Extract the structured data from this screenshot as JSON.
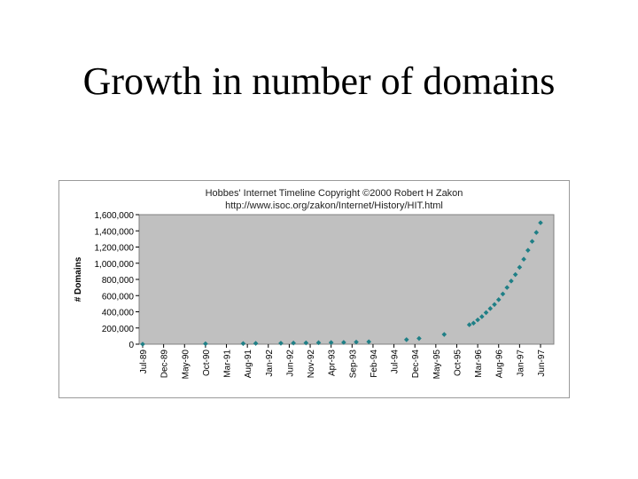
{
  "slide": {
    "title": "Growth in number of domains"
  },
  "chart_data": {
    "type": "scatter",
    "title_lines": [
      "Hobbes' Internet Timeline Copyright ©2000 Robert H Zakon",
      "http://www.isoc.org/zakon/Internet/History/HIT.html"
    ],
    "xlabel": "",
    "ylabel": "# Domains",
    "ylim": [
      0,
      1600000
    ],
    "y_ticks": [
      0,
      200000,
      400000,
      600000,
      800000,
      1000000,
      1200000,
      1400000,
      1600000
    ],
    "y_tick_labels": [
      "0",
      "200,000",
      "400,000",
      "600,000",
      "800,000",
      "1,000,000",
      "1,200,000",
      "1,400,000",
      "1,600,000"
    ],
    "x_tick_labels": [
      "Jul-89",
      "Dec-89",
      "May-90",
      "Oct-90",
      "Mar-91",
      "Aug-91",
      "Jan-92",
      "Jun-92",
      "Nov-92",
      "Apr-93",
      "Sep-93",
      "Feb-94",
      "Jul-94",
      "Dec-94",
      "May-95",
      "Oct-95",
      "Mar-96",
      "Aug-96",
      "Jan-97",
      "Jun-97"
    ],
    "grid": false,
    "marker_color": "#1f7f86",
    "plot_bg_color": "#c0c0c0",
    "points": [
      {
        "x": "Jul-89",
        "y": 0
      },
      {
        "x": "Oct-90",
        "y": 5000
      },
      {
        "x": "Jul-91",
        "y": 8000
      },
      {
        "x": "Oct-91",
        "y": 10000
      },
      {
        "x": "Apr-92",
        "y": 12000
      },
      {
        "x": "Jul-92",
        "y": 14000
      },
      {
        "x": "Oct-92",
        "y": 16000
      },
      {
        "x": "Jan-93",
        "y": 18000
      },
      {
        "x": "Apr-93",
        "y": 20000
      },
      {
        "x": "Jul-93",
        "y": 22000
      },
      {
        "x": "Oct-93",
        "y": 26000
      },
      {
        "x": "Jan-94",
        "y": 30000
      },
      {
        "x": "Oct-94",
        "y": 56000
      },
      {
        "x": "Jan-95",
        "y": 71000
      },
      {
        "x": "Jul-95",
        "y": 120000
      },
      {
        "x": "Jan-96",
        "y": 240000
      },
      {
        "x": "Feb-96",
        "y": 260000
      },
      {
        "x": "Mar-96",
        "y": 300000
      },
      {
        "x": "Apr-96",
        "y": 340000
      },
      {
        "x": "May-96",
        "y": 390000
      },
      {
        "x": "Jun-96",
        "y": 440000
      },
      {
        "x": "Jul-96",
        "y": 490000
      },
      {
        "x": "Aug-96",
        "y": 550000
      },
      {
        "x": "Sep-96",
        "y": 620000
      },
      {
        "x": "Oct-96",
        "y": 700000
      },
      {
        "x": "Nov-96",
        "y": 780000
      },
      {
        "x": "Dec-96",
        "y": 860000
      },
      {
        "x": "Jan-97",
        "y": 950000
      },
      {
        "x": "Feb-97",
        "y": 1050000
      },
      {
        "x": "Mar-97",
        "y": 1160000
      },
      {
        "x": "Apr-97",
        "y": 1270000
      },
      {
        "x": "May-97",
        "y": 1380000
      },
      {
        "x": "Jun-97",
        "y": 1500000
      }
    ]
  }
}
